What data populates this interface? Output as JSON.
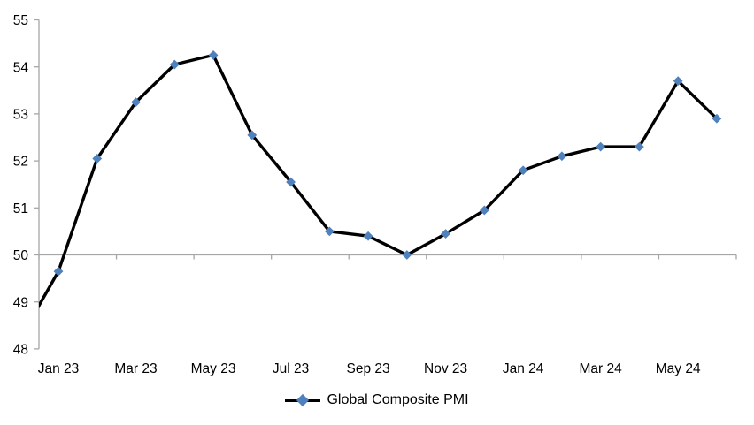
{
  "chart_data": {
    "type": "line",
    "title": "",
    "background": "#FFFFFF",
    "axis_color": "#A6A6A6",
    "legend": {
      "label": "Global Composite PMI",
      "position": "bottom-center"
    },
    "y_axis": {
      "min": 48,
      "max": 55,
      "step": 1,
      "tick_labels": [
        "48",
        "49",
        "50",
        "51",
        "52",
        "53",
        "54",
        "55"
      ],
      "gridlines": false
    },
    "x_axis": {
      "crosses_at_value": 50,
      "tick_labels": [
        "Jan 23",
        "Mar 23",
        "May 23",
        "Jul 23",
        "Sep 23",
        "Nov 23",
        "Jan 24",
        "Mar 24",
        "May 24"
      ],
      "label_interval_months": 2,
      "tick_marks": "below axis line, every 2 months"
    },
    "series": [
      {
        "name": "Global Composite PMI",
        "line_color": "#000000",
        "marker_color": "#4F81BD",
        "marker_shape": "diamond",
        "points": [
          {
            "month": "Dec 22",
            "value": 48.2,
            "clipped": true
          },
          {
            "month": "Jan 23",
            "value": 49.65
          },
          {
            "month": "Feb 23",
            "value": 52.05
          },
          {
            "month": "Mar 23",
            "value": 53.25
          },
          {
            "month": "Apr 23",
            "value": 54.05
          },
          {
            "month": "May 23",
            "value": 54.25
          },
          {
            "month": "Jun 23",
            "value": 52.55
          },
          {
            "month": "Jul 23",
            "value": 51.55
          },
          {
            "month": "Aug 23",
            "value": 50.5
          },
          {
            "month": "Sep 23",
            "value": 50.4
          },
          {
            "month": "Oct 23",
            "value": 50.0
          },
          {
            "month": "Nov 23",
            "value": 50.45
          },
          {
            "month": "Dec 23",
            "value": 50.95
          },
          {
            "month": "Jan 24",
            "value": 51.8
          },
          {
            "month": "Feb 24",
            "value": 52.1
          },
          {
            "month": "Mar 24",
            "value": 52.3
          },
          {
            "month": "Apr 24",
            "value": 52.3
          },
          {
            "month": "May 24",
            "value": 53.7
          },
          {
            "month": "Jun 24",
            "value": 52.9
          }
        ]
      }
    ]
  }
}
